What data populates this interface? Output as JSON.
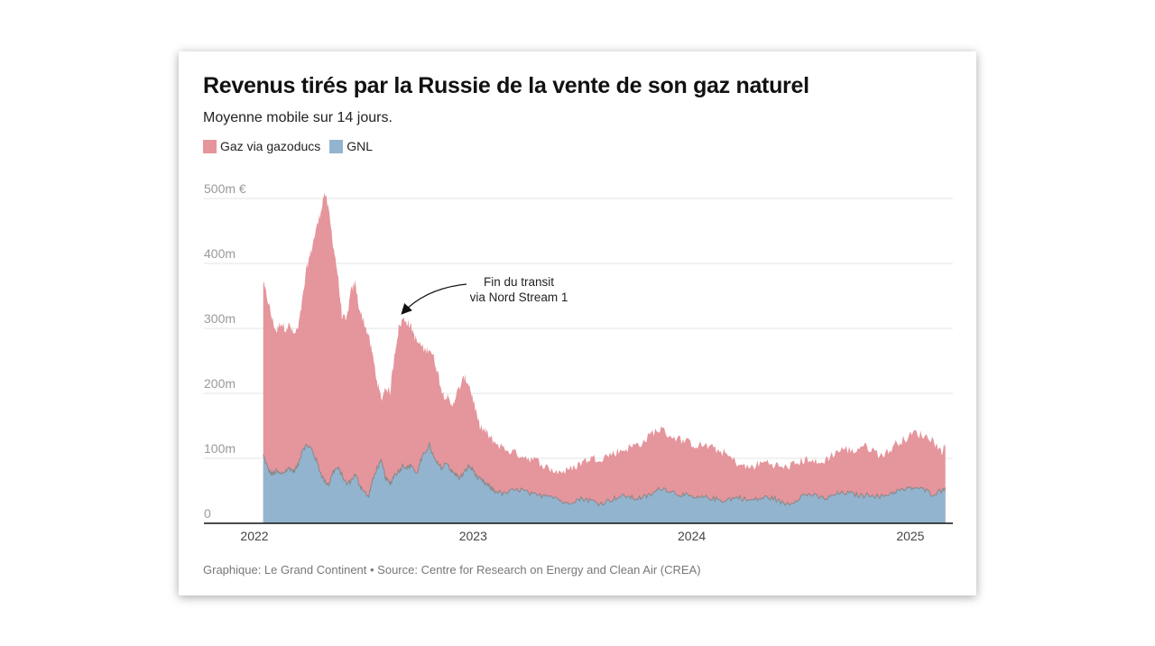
{
  "chart_data": {
    "type": "area",
    "stacked": true,
    "title": "Revenus tirés par la Russie de la vente de son gaz naturel",
    "subtitle": "Moyenne mobile sur 14 jours.",
    "source": "Graphique: Le Grand Continent • Source: Centre for Research on Energy and Clean Air (CREA)",
    "xlabel": "",
    "ylabel": "",
    "y_unit": "m €",
    "ylim": [
      0,
      500
    ],
    "yticks": [
      {
        "value": 0,
        "label": "0"
      },
      {
        "value": 100,
        "label": "100m"
      },
      {
        "value": 200,
        "label": "200m"
      },
      {
        "value": 300,
        "label": "300m"
      },
      {
        "value": 400,
        "label": "400m"
      },
      {
        "value": 500,
        "label": "500m €"
      }
    ],
    "xticks": [
      {
        "value": 2022.0,
        "label": "2022"
      },
      {
        "value": 2023.0,
        "label": "2023"
      },
      {
        "value": 2024.0,
        "label": "2024"
      },
      {
        "value": 2025.0,
        "label": "2025"
      }
    ],
    "xlim": [
      2022.0,
      2025.19
    ],
    "grid": true,
    "legend_position": "top-left",
    "series": [
      {
        "name": "Gaz via gazoducs",
        "color": "#e5959c",
        "role": "total_top"
      },
      {
        "name": "GNL",
        "color": "#93b4cf",
        "role": "base"
      }
    ],
    "note": "total = gazoducs + GNL, values in millions of euros",
    "x": [
      2022.04,
      2022.06,
      2022.08,
      2022.1,
      2022.12,
      2022.14,
      2022.16,
      2022.18,
      2022.2,
      2022.22,
      2022.24,
      2022.26,
      2022.28,
      2022.3,
      2022.32,
      2022.34,
      2022.36,
      2022.38,
      2022.4,
      2022.42,
      2022.44,
      2022.46,
      2022.48,
      2022.5,
      2022.52,
      2022.54,
      2022.56,
      2022.58,
      2022.6,
      2022.62,
      2022.64,
      2022.66,
      2022.68,
      2022.7,
      2022.72,
      2022.74,
      2022.76,
      2022.78,
      2022.8,
      2022.82,
      2022.84,
      2022.86,
      2022.88,
      2022.9,
      2022.92,
      2022.94,
      2022.96,
      2022.98,
      2023.0,
      2023.02,
      2023.04,
      2023.06,
      2023.08,
      2023.1,
      2023.14,
      2023.18,
      2023.22,
      2023.26,
      2023.3,
      2023.34,
      2023.38,
      2023.42,
      2023.46,
      2023.5,
      2023.54,
      2023.58,
      2023.62,
      2023.66,
      2023.7,
      2023.74,
      2023.78,
      2023.82,
      2023.86,
      2023.9,
      2023.94,
      2023.98,
      2024.02,
      2024.06,
      2024.1,
      2024.14,
      2024.18,
      2024.22,
      2024.26,
      2024.3,
      2024.34,
      2024.38,
      2024.42,
      2024.46,
      2024.5,
      2024.54,
      2024.58,
      2024.62,
      2024.66,
      2024.7,
      2024.74,
      2024.78,
      2024.82,
      2024.86,
      2024.9,
      2024.94,
      2024.98,
      2025.02,
      2025.06,
      2025.1,
      2025.14,
      2025.16
    ],
    "total": [
      370,
      345,
      315,
      295,
      310,
      300,
      305,
      290,
      300,
      345,
      395,
      420,
      450,
      475,
      510,
      480,
      430,
      385,
      320,
      310,
      355,
      370,
      330,
      310,
      290,
      260,
      220,
      190,
      210,
      200,
      260,
      300,
      315,
      310,
      300,
      280,
      275,
      265,
      270,
      255,
      230,
      200,
      195,
      180,
      195,
      210,
      225,
      215,
      190,
      160,
      145,
      140,
      130,
      125,
      115,
      110,
      105,
      100,
      95,
      85,
      80,
      80,
      85,
      95,
      100,
      100,
      105,
      110,
      115,
      120,
      125,
      140,
      145,
      135,
      130,
      125,
      120,
      120,
      115,
      110,
      100,
      90,
      85,
      90,
      95,
      90,
      85,
      90,
      95,
      100,
      90,
      100,
      110,
      115,
      110,
      120,
      115,
      105,
      110,
      125,
      130,
      140,
      135,
      130,
      110,
      120
    ],
    "gnl": [
      105,
      85,
      75,
      80,
      75,
      80,
      85,
      80,
      90,
      115,
      120,
      115,
      100,
      80,
      65,
      60,
      80,
      85,
      75,
      60,
      65,
      75,
      60,
      50,
      40,
      65,
      85,
      95,
      70,
      60,
      75,
      80,
      90,
      85,
      90,
      75,
      95,
      110,
      120,
      100,
      90,
      85,
      95,
      80,
      75,
      70,
      78,
      88,
      82,
      70,
      65,
      60,
      55,
      50,
      45,
      50,
      52,
      45,
      42,
      45,
      40,
      30,
      35,
      38,
      35,
      30,
      35,
      40,
      42,
      38,
      40,
      45,
      55,
      50,
      45,
      42,
      38,
      40,
      38,
      35,
      38,
      40,
      35,
      37,
      40,
      38,
      30,
      32,
      42,
      45,
      40,
      38,
      45,
      47,
      45,
      42,
      45,
      40,
      45,
      50,
      52,
      55,
      52,
      45,
      50,
      55
    ]
  },
  "annotation": {
    "line1": "Fin du transit",
    "line2": "via Nord Stream 1"
  }
}
